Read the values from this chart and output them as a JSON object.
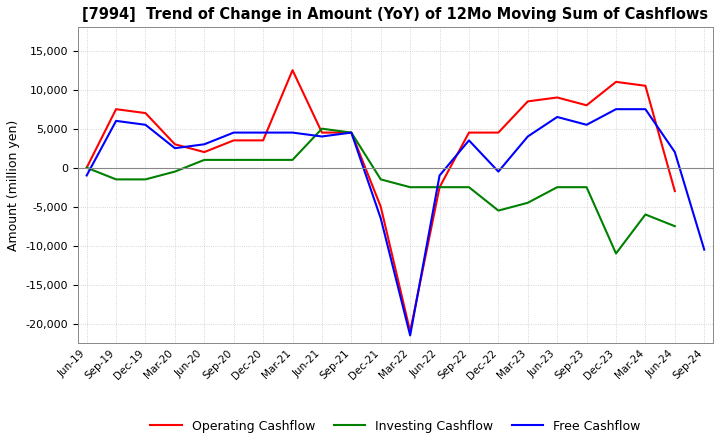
{
  "title": "[7994]  Trend of Change in Amount (YoY) of 12Mo Moving Sum of Cashflows",
  "ylabel": "Amount (million yen)",
  "x_labels": [
    "Jun-19",
    "Sep-19",
    "Dec-19",
    "Mar-20",
    "Jun-20",
    "Sep-20",
    "Dec-20",
    "Mar-21",
    "Jun-21",
    "Sep-21",
    "Dec-21",
    "Mar-22",
    "Jun-22",
    "Sep-22",
    "Dec-22",
    "Mar-23",
    "Jun-23",
    "Sep-23",
    "Dec-23",
    "Mar-24",
    "Jun-24",
    "Sep-24"
  ],
  "operating": [
    0,
    7500,
    7000,
    3000,
    2000,
    3500,
    3500,
    12500,
    4500,
    4500,
    -5000,
    -21000,
    -2500,
    4500,
    4500,
    8500,
    9000,
    8000,
    11000,
    10500,
    -3000,
    null
  ],
  "investing": [
    0,
    -1500,
    -1500,
    -500,
    1000,
    1000,
    1000,
    1000,
    5000,
    4500,
    -1500,
    -2500,
    -2500,
    -2500,
    -5500,
    -4500,
    -2500,
    -2500,
    -11000,
    -6000,
    -7500,
    null
  ],
  "free": [
    -1000,
    6000,
    5500,
    2500,
    3000,
    4500,
    4500,
    4500,
    4000,
    4500,
    -6500,
    -21500,
    -1000,
    3500,
    -500,
    4000,
    6500,
    5500,
    7500,
    7500,
    2000,
    -10500
  ],
  "operating_color": "#ff0000",
  "investing_color": "#008000",
  "free_color": "#0000ff",
  "background_color": "#ffffff",
  "grid_color": "#c8c8c8",
  "ylim": [
    -22500,
    18000
  ],
  "yticks": [
    -20000,
    -15000,
    -10000,
    -5000,
    0,
    5000,
    10000,
    15000
  ],
  "legend_labels": [
    "Operating Cashflow",
    "Investing Cashflow",
    "Free Cashflow"
  ]
}
